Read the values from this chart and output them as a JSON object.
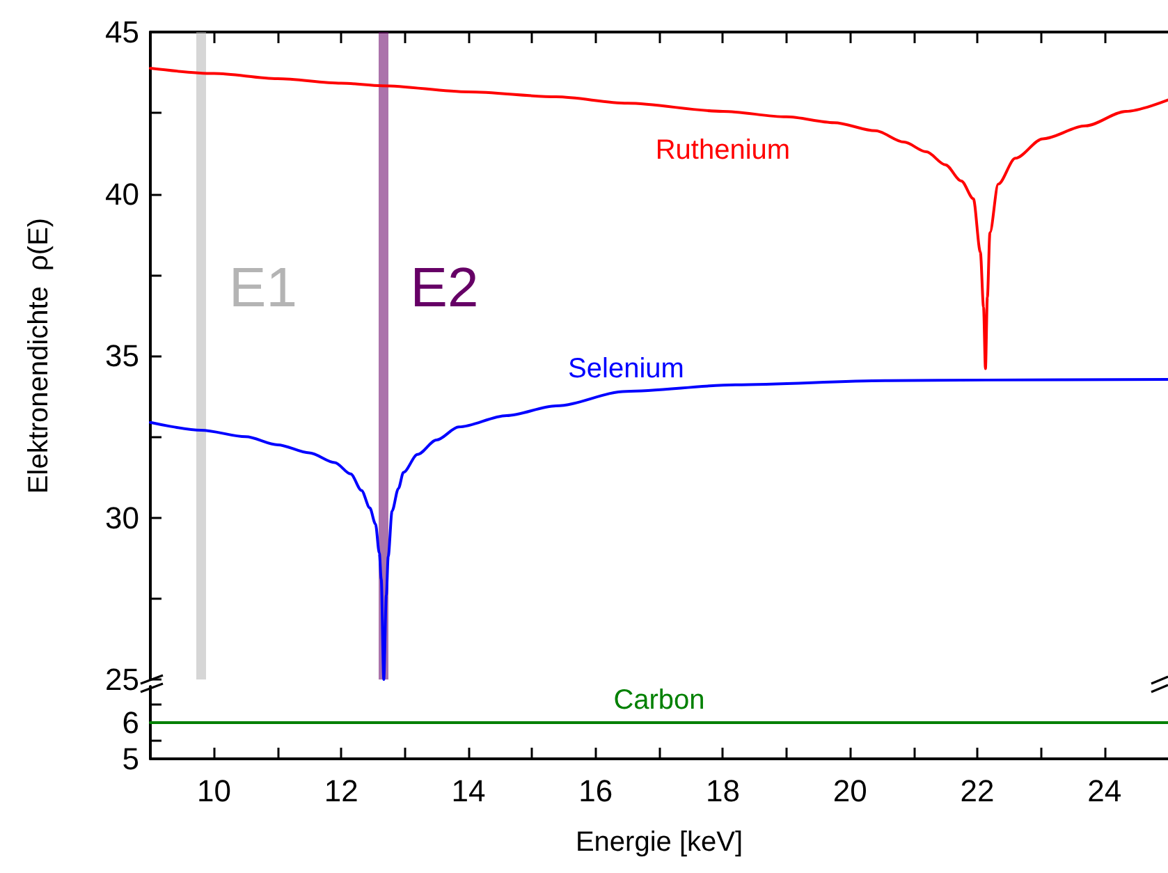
{
  "chart_data": [
    {
      "type": "line",
      "ylabel": "Elektronendichte  ρ(E)",
      "xlim": [
        9,
        25
      ],
      "ylim": [
        25,
        45
      ],
      "xticks": [
        10,
        {
          "value": 11,
          "label": null
        },
        12,
        {
          "value": 13,
          "label": null
        },
        14,
        {
          "value": 15,
          "label": null
        },
        16,
        {
          "value": 17,
          "label": null
        },
        18,
        {
          "value": 19,
          "label": null
        },
        20,
        {
          "value": 21,
          "label": null
        },
        22,
        {
          "value": 23,
          "label": null
        },
        24
      ],
      "yticks": [
        25,
        {
          "value": 27.5,
          "label": null
        },
        30,
        {
          "value": 32.5,
          "label": null
        },
        35,
        {
          "value": 37.5,
          "label": null
        },
        40,
        {
          "value": 42.5,
          "label": null
        },
        45
      ],
      "tick_labels": "y",
      "grid": false,
      "legend": false,
      "marker": "none",
      "line_style": "solid",
      "series": [
        {
          "name": "Ruthenium",
          "color": "#ff0000",
          "x": [
            9,
            10,
            11,
            12,
            12.65,
            14,
            15.38,
            16.5,
            18,
            19,
            19.75,
            20.4,
            20.85,
            21.2,
            21.5,
            21.75,
            21.94,
            22.05,
            22.1,
            22.13,
            22.16,
            22.2,
            22.33,
            22.6,
            23.03,
            23.7,
            24.34,
            25
          ],
          "values": [
            43.88,
            43.72,
            43.56,
            43.42,
            43.34,
            43.15,
            43.0,
            42.8,
            42.55,
            42.38,
            42.2,
            41.95,
            41.6,
            41.3,
            40.9,
            40.4,
            39.85,
            38.2,
            36.5,
            34.6,
            36.8,
            38.8,
            40.3,
            41.1,
            41.7,
            42.1,
            42.55,
            42.9
          ]
        },
        {
          "name": "Selenium",
          "color": "#0000ff",
          "x": [
            9,
            9.8,
            10.5,
            11,
            11.5,
            11.9,
            12.15,
            12.32,
            12.45,
            12.54,
            12.6,
            12.63,
            12.67,
            12.71,
            12.74,
            12.8,
            12.9,
            12.98,
            13.2,
            13.5,
            13.85,
            14.6,
            15.38,
            16.48,
            18.2,
            20.6,
            22.13,
            25
          ],
          "values": [
            32.94,
            32.7,
            32.5,
            32.25,
            32.0,
            31.7,
            31.35,
            30.84,
            30.3,
            29.8,
            28.9,
            28.1,
            25.0,
            27.6,
            28.8,
            30.2,
            30.9,
            31.4,
            31.95,
            32.4,
            32.8,
            33.15,
            33.45,
            33.9,
            34.1,
            34.23,
            34.25,
            34.27
          ]
        }
      ],
      "ref_lines": [
        {
          "axis": "x",
          "value": 9.8,
          "label": "E1",
          "color": "#b4b4b4"
        },
        {
          "axis": "x",
          "value": 12.65,
          "label": "E2",
          "color": "#660066"
        }
      ]
    },
    {
      "type": "line",
      "xlabel": "Energie [keV]",
      "xlim": [
        9,
        25
      ],
      "ylim": [
        5,
        7
      ],
      "xticks": [
        10,
        {
          "value": 11,
          "label": null
        },
        12,
        {
          "value": 13,
          "label": null
        },
        14,
        {
          "value": 15,
          "label": null
        },
        16,
        {
          "value": 17,
          "label": null
        },
        18,
        {
          "value": 19,
          "label": null
        },
        20,
        {
          "value": 21,
          "label": null
        },
        22,
        {
          "value": 23,
          "label": null
        },
        24
      ],
      "yticks": [
        5,
        {
          "value": 5.5,
          "label": null
        },
        6,
        {
          "value": 6.5,
          "label": null
        }
      ],
      "grid": false,
      "legend": false,
      "marker": "none",
      "line_style": "solid",
      "series": [
        {
          "name": "Carbon",
          "color": "#008000",
          "x": [
            9,
            17,
            25
          ],
          "values": [
            6.0,
            6.0,
            6.0
          ]
        }
      ]
    }
  ]
}
